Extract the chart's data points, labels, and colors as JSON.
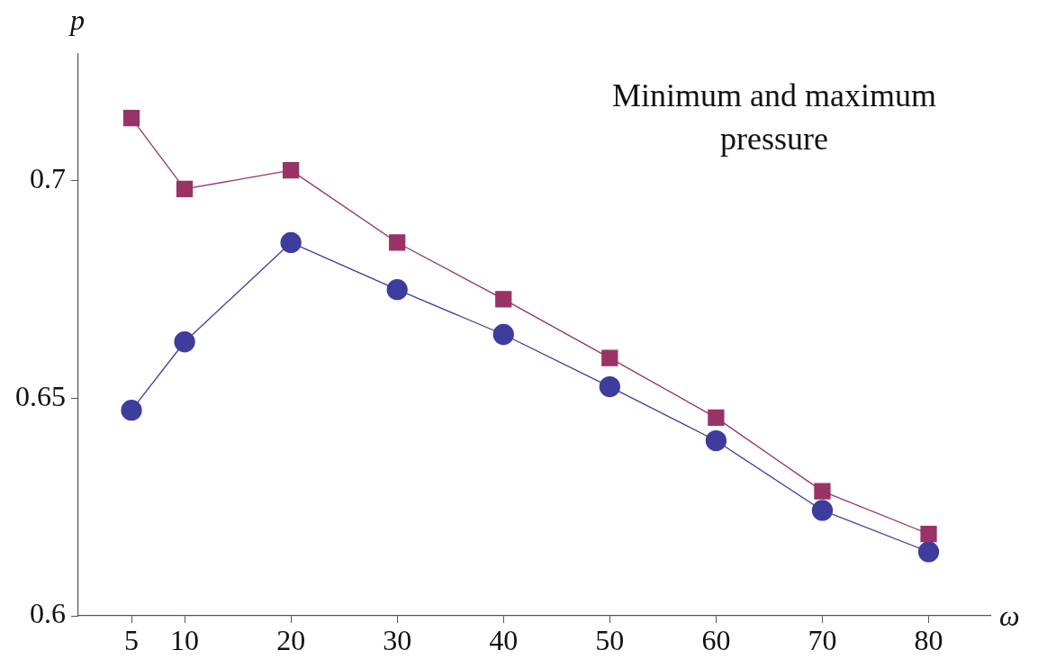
{
  "chart_data": {
    "type": "line",
    "xlabel": "ω",
    "ylabel": "p",
    "x": [
      5,
      10,
      20,
      30,
      40,
      50,
      60,
      70,
      80
    ],
    "series": [
      {
        "color": "#993366",
        "marker": "square",
        "values": [
          0.7143,
          0.698,
          0.7023,
          0.6857,
          0.6727,
          0.6592,
          0.6455,
          0.6286,
          0.6188
        ]
      },
      {
        "color": "#3d3d9d",
        "marker": "circle",
        "values": [
          0.6472,
          0.6629,
          0.6857,
          0.6749,
          0.6646,
          0.6526,
          0.6402,
          0.6242,
          0.6147
        ]
      }
    ],
    "xlim": [
      0,
      85.8
    ],
    "ylim": [
      0.6,
      0.729
    ],
    "xticks": [
      5,
      10,
      20,
      30,
      40,
      50,
      60,
      70,
      80
    ],
    "yticks": [
      0.6,
      0.65,
      0.7
    ],
    "annotations": [
      "Minimum and maximum pressure"
    ],
    "grid": false,
    "legend": false
  }
}
